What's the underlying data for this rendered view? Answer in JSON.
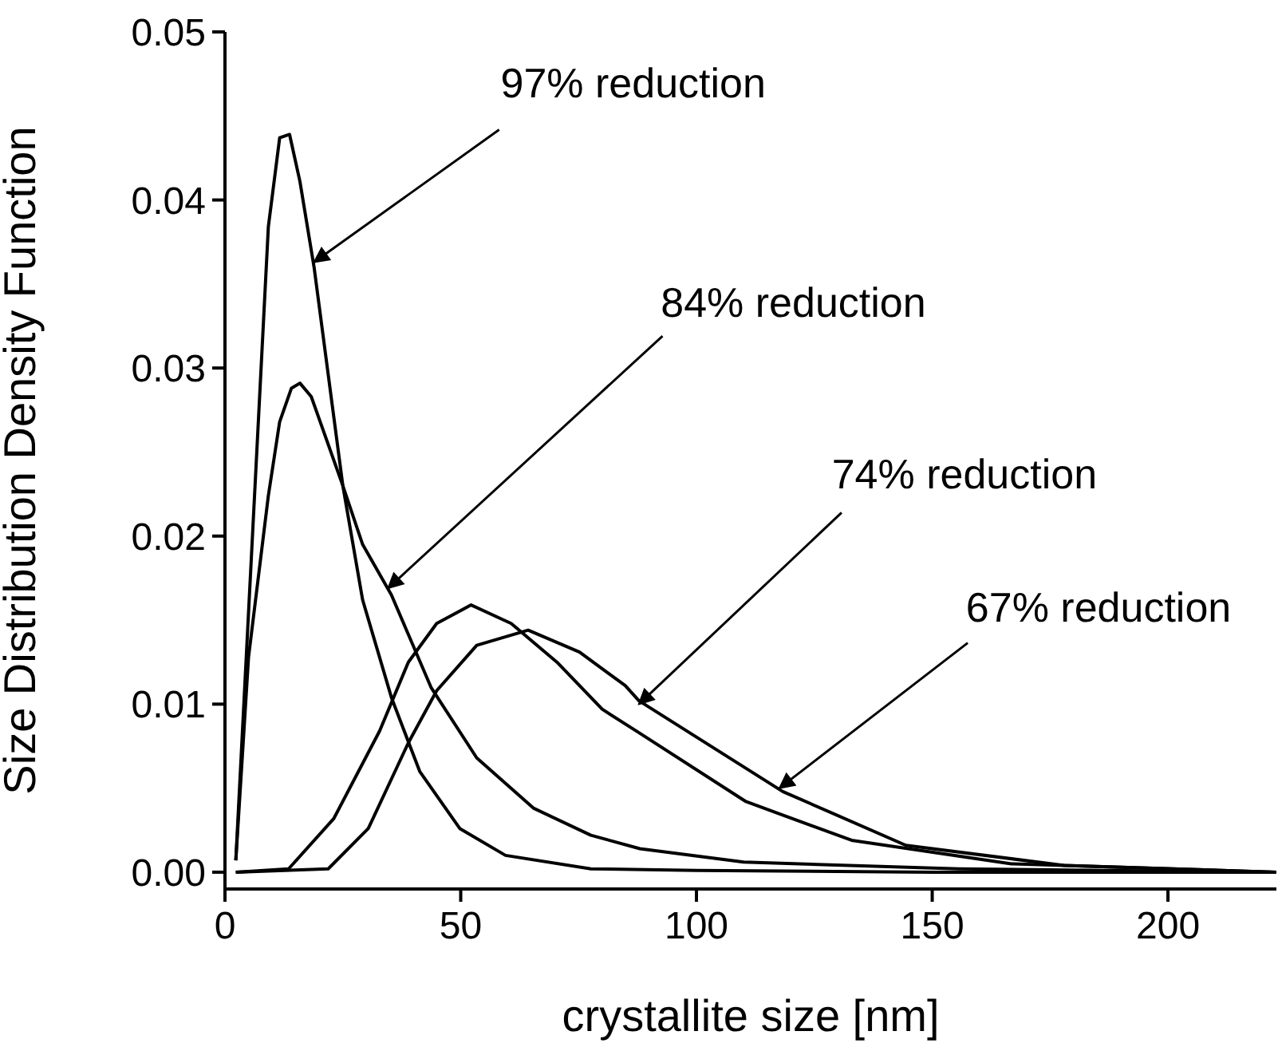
{
  "chart_data": {
    "type": "line",
    "xlabel": "crystallite size [nm]",
    "ylabel": "Size Distribution Density Function",
    "xlim": [
      0,
      223
    ],
    "xticks": [
      0,
      50,
      100,
      150,
      200
    ],
    "ylim": [
      -0.001,
      0.05
    ],
    "yticks": [
      {
        "value": 0,
        "label": "0.00"
      },
      {
        "value": 0.01,
        "label": "0.01"
      },
      {
        "value": 0.02,
        "label": "0.02"
      },
      {
        "value": 0.03,
        "label": "0.03"
      },
      {
        "value": 0.04,
        "label": "0.04"
      },
      {
        "value": 0.05,
        "label": "0.05"
      }
    ],
    "marker": "none",
    "line_style": "solid",
    "series": [
      {
        "color": "#000000",
        "x": [
          2.3,
          9.2,
          11.6,
          13.7,
          15.9,
          18.9,
          25,
          29.2,
          35.3,
          41.3,
          49.8,
          59.5,
          77.6,
          100,
          150,
          223
        ],
        "values": [
          0.0007,
          0.0384,
          0.0437,
          0.0439,
          0.0411,
          0.036,
          0.023,
          0.0162,
          0.0104,
          0.006,
          0.0026,
          0.001,
          0.0002,
          0.0001,
          0,
          0
        ]
      },
      {
        "color": "#000000",
        "x": [
          2.3,
          5,
          9.2,
          11.6,
          14.1,
          15.9,
          18.3,
          25,
          29.2,
          35.3,
          43.7,
          53.4,
          65.5,
          77.6,
          88,
          110,
          155.6,
          223
        ],
        "values": [
          0.0007,
          0.0128,
          0.0224,
          0.0268,
          0.0288,
          0.0291,
          0.0283,
          0.023,
          0.0195,
          0.0165,
          0.011,
          0.0068,
          0.0038,
          0.0022,
          0.0014,
          0.0006,
          0.0002,
          0
        ]
      },
      {
        "color": "#000000",
        "x": [
          2.3,
          13.5,
          23.1,
          32.8,
          38.9,
          44.9,
          52.2,
          60.7,
          70.4,
          80,
          87.8,
          110.5,
          132.9,
          166.8,
          223
        ],
        "values": [
          0,
          0.0002,
          0.0032,
          0.0084,
          0.0125,
          0.0148,
          0.0159,
          0.0148,
          0.0125,
          0.0097,
          0.0083,
          0.0042,
          0.0019,
          0.0005,
          0
        ]
      },
      {
        "color": "#000000",
        "x": [
          2.3,
          21.9,
          30.4,
          38.9,
          44.9,
          53.4,
          64.3,
          75.2,
          84.9,
          87.8,
          118.3,
          144.4,
          178,
          223
        ],
        "values": [
          0,
          0.0002,
          0.0026,
          0.0077,
          0.0108,
          0.0135,
          0.0144,
          0.0131,
          0.0111,
          0.0102,
          0.0048,
          0.0016,
          0.0004,
          0
        ]
      }
    ],
    "annotations": [
      {
        "text": "97% reduction",
        "x": 18.9,
        "y": 0.0363
      },
      {
        "text": "84% reduction",
        "x": 34.6,
        "y": 0.0169
      },
      {
        "text": "74% reduction",
        "x": 87.8,
        "y": 0.01
      },
      {
        "text": "67% reduction",
        "x": 117.6,
        "y": 0.005
      }
    ]
  }
}
